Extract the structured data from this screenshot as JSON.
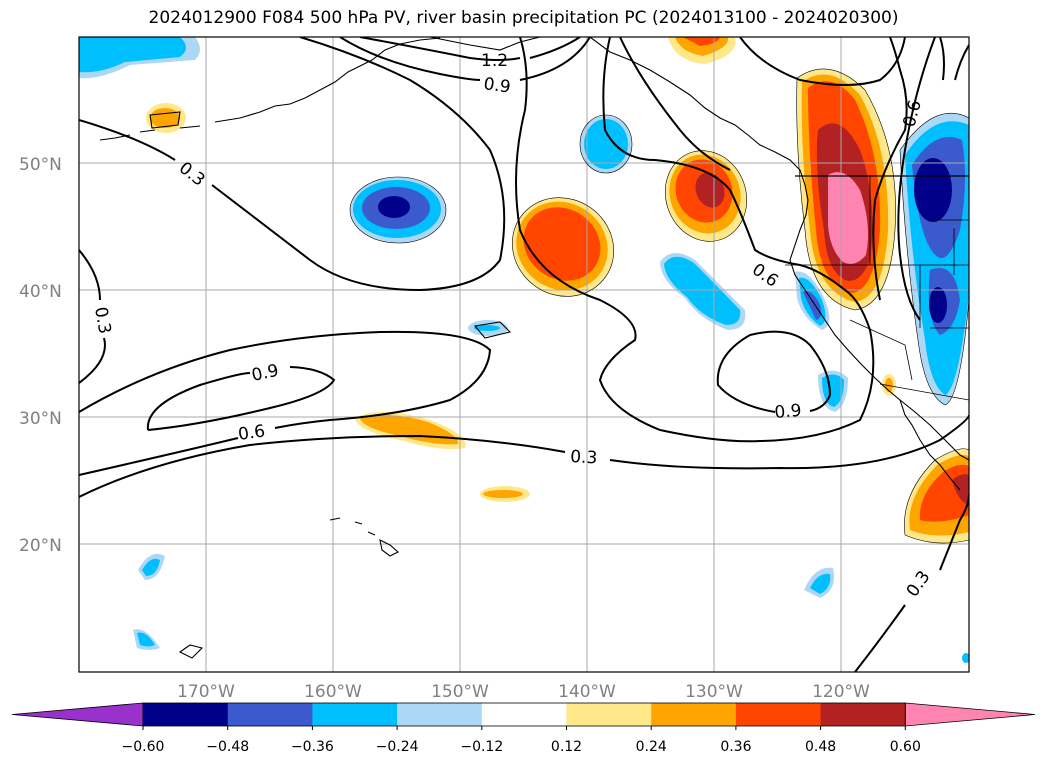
{
  "title": "2024012900 F084 500 hPa PV, river basin precipitation PC (2024013100 - 2024020300)",
  "map": {
    "lat_labels": [
      "50°N",
      "40°N",
      "30°N",
      "20°N"
    ],
    "lon_labels": [
      "170°W",
      "160°W",
      "150°W",
      "140°W",
      "130°W",
      "120°W"
    ],
    "contour_labels": [
      "1.2",
      "0.9",
      "0.3",
      "0.3",
      "0.6",
      "0.9",
      "0.6",
      "0.9",
      "0.3",
      "0.6",
      "0.3"
    ]
  },
  "colorbar": {
    "ticks": [
      "−0.60",
      "−0.48",
      "−0.36",
      "−0.24",
      "−0.12",
      "0.12",
      "0.24",
      "0.36",
      "0.48",
      "0.60"
    ],
    "colors": [
      "#9932cc",
      "#00008b",
      "#3a5acd",
      "#00bfff",
      "#add8f5",
      "#ffffff",
      "#ffe88a",
      "#ffa500",
      "#ff4500",
      "#b22222",
      "#ff85b0"
    ]
  },
  "colors": {
    "light_blue": "#add8f5",
    "sky_blue": "#00bfff",
    "royal_blue": "#3a5acd",
    "navy": "#00008b",
    "light_yellow": "#ffe88a",
    "orange": "#ffa500",
    "orange_red": "#ff4500",
    "firebrick": "#b22222",
    "pink": "#ff85b0"
  }
}
